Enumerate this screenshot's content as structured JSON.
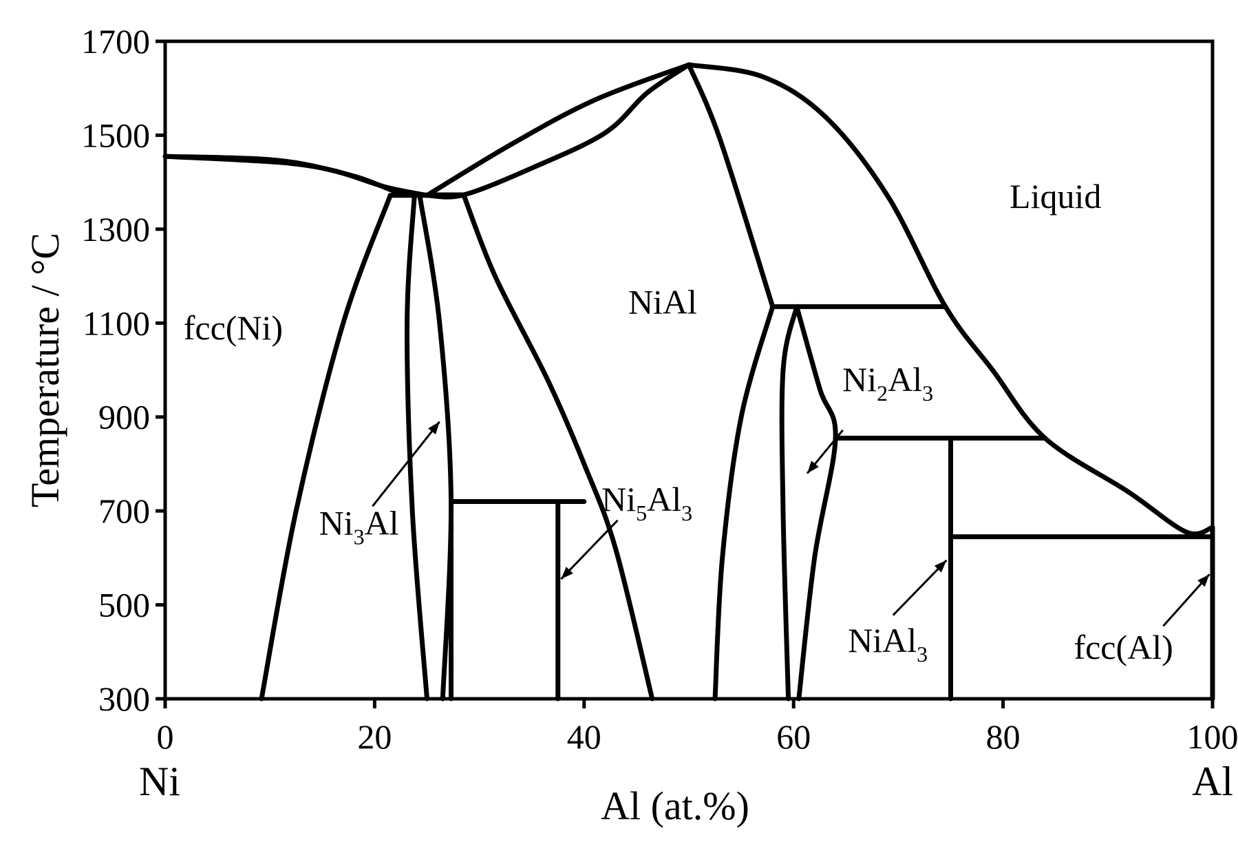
{
  "chart_data": {
    "type": "phase-diagram",
    "title": "",
    "xlabel": "Al (at.%)",
    "ylabel": "Temperature / °C",
    "xlim": [
      0,
      100
    ],
    "ylim": [
      300,
      1700
    ],
    "x_ticks": [
      "0",
      "20",
      "40",
      "60",
      "80",
      "100"
    ],
    "y_ticks": [
      "300",
      "500",
      "700",
      "900",
      "1100",
      "1300",
      "1500",
      "1700"
    ],
    "x_end_labels": {
      "left": "Ni",
      "right": "Al"
    },
    "grid": false,
    "region_labels": [
      {
        "id": "liquid",
        "parts": [
          {
            "t": "Liquid"
          }
        ],
        "at": [
          85,
          1345
        ]
      },
      {
        "id": "fcc-ni",
        "parts": [
          {
            "t": "fcc(Ni)"
          }
        ],
        "at": [
          6.5,
          1065
        ]
      },
      {
        "id": "nial",
        "parts": [
          {
            "t": "NiAl"
          }
        ],
        "at": [
          47.5,
          1120
        ]
      },
      {
        "id": "ni3al",
        "parts": [
          {
            "t": "Ni"
          },
          {
            "t": "3",
            "sub": true
          },
          {
            "t": "Al"
          }
        ],
        "at": [
          18.5,
          650
        ]
      },
      {
        "id": "ni5al3",
        "parts": [
          {
            "t": "Ni"
          },
          {
            "t": "5",
            "sub": true
          },
          {
            "t": "Al"
          },
          {
            "t": "3",
            "sub": true
          }
        ],
        "at": [
          46,
          700
        ]
      },
      {
        "id": "ni2al3",
        "parts": [
          {
            "t": "Ni"
          },
          {
            "t": "2",
            "sub": true
          },
          {
            "t": "Al"
          },
          {
            "t": "3",
            "sub": true
          }
        ],
        "at": [
          69,
          955
        ]
      },
      {
        "id": "nial3",
        "parts": [
          {
            "t": "NiAl"
          },
          {
            "t": "3",
            "sub": true
          }
        ],
        "at": [
          69,
          400
        ]
      },
      {
        "id": "fcc-al",
        "parts": [
          {
            "t": "fcc(Al)"
          }
        ],
        "at": [
          91.5,
          385
        ]
      }
    ],
    "arrows": [
      {
        "id": "ni3al",
        "from": [
          19.8,
          710
        ],
        "to": [
          26.2,
          890
        ]
      },
      {
        "id": "ni5al3",
        "from": [
          43.2,
          680
        ],
        "to": [
          37.8,
          555
        ]
      },
      {
        "id": "ni2al3",
        "from": [
          64.7,
          872
        ],
        "to": [
          61.3,
          780
        ]
      },
      {
        "id": "nial3",
        "from": [
          69.5,
          478
        ],
        "to": [
          74.6,
          595
        ]
      },
      {
        "id": "fcc-al",
        "from": [
          95.3,
          455
        ],
        "to": [
          99.7,
          565
        ]
      }
    ],
    "boundaries": [
      {
        "id": "ni-liquidus",
        "points": [
          [
            0,
            1455
          ],
          [
            10,
            1448
          ],
          [
            16,
            1425
          ],
          [
            21,
            1390
          ],
          [
            25,
            1372
          ]
        ]
      },
      {
        "id": "ni-solidus",
        "points": [
          [
            0,
            1455
          ],
          [
            12,
            1440
          ],
          [
            18,
            1413
          ],
          [
            22,
            1380
          ],
          [
            23.8,
            1372
          ]
        ]
      },
      {
        "id": "fcc-solvus",
        "points": [
          [
            21.5,
            1372
          ],
          [
            17,
            1100
          ],
          [
            12.5,
            700
          ],
          [
            9.2,
            300
          ]
        ]
      },
      {
        "id": "ni3al-left",
        "points": [
          [
            23.8,
            1372
          ],
          [
            23.1,
            1100
          ],
          [
            23.6,
            700
          ],
          [
            25,
            300
          ]
        ]
      },
      {
        "id": "ni3al-right",
        "points": [
          [
            24.3,
            1372
          ],
          [
            26.2,
            1100
          ],
          [
            27.3,
            720
          ],
          [
            26.5,
            300
          ]
        ]
      },
      {
        "id": "nial-liquidus-left",
        "points": [
          [
            25,
            1372
          ],
          [
            33,
            1480
          ],
          [
            41,
            1575
          ],
          [
            50,
            1650
          ]
        ]
      },
      {
        "id": "nial-solidus-left",
        "points": [
          [
            25,
            1372
          ],
          [
            28.5,
            1373
          ],
          [
            35,
            1430
          ],
          [
            42,
            1505
          ],
          [
            46,
            1590
          ],
          [
            50,
            1650
          ]
        ]
      },
      {
        "id": "nial-solvus-left",
        "points": [
          [
            28.5,
            1373
          ],
          [
            31.5,
            1200
          ],
          [
            36.5,
            980
          ],
          [
            40,
            800
          ],
          [
            43,
            620
          ],
          [
            46.5,
            300
          ]
        ]
      },
      {
        "id": "nial-solidus-right",
        "points": [
          [
            50,
            1650
          ],
          [
            53,
            1490
          ],
          [
            58,
            1135
          ]
        ]
      },
      {
        "id": "nial-solvus-right",
        "points": [
          [
            58,
            1135
          ],
          [
            55,
            900
          ],
          [
            53.2,
            600
          ],
          [
            52.5,
            300
          ]
        ]
      },
      {
        "id": "liquidus-right",
        "points": [
          [
            50,
            1650
          ],
          [
            57,
            1625
          ],
          [
            63,
            1540
          ],
          [
            69,
            1370
          ],
          [
            74.5,
            1135
          ],
          [
            79,
            1000
          ],
          [
            84,
            855
          ],
          [
            92,
            740
          ],
          [
            97.5,
            655
          ],
          [
            100,
            665
          ]
        ]
      },
      {
        "id": "ni2al3-left",
        "points": [
          [
            60.3,
            1135
          ],
          [
            59,
            1000
          ],
          [
            59,
            700
          ],
          [
            59.5,
            300
          ]
        ]
      },
      {
        "id": "ni2al3-right",
        "points": [
          [
            60.3,
            1135
          ],
          [
            62.5,
            960
          ],
          [
            64,
            855
          ],
          [
            62,
            600
          ],
          [
            60.5,
            300
          ]
        ]
      },
      {
        "id": "ni5al3-left",
        "points": [
          [
            27.3,
            720
          ],
          [
            27.3,
            300
          ]
        ]
      },
      {
        "id": "ni5al3-right",
        "points": [
          [
            37.5,
            720
          ],
          [
            37.5,
            300
          ]
        ]
      },
      {
        "id": "nial3",
        "points": [
          [
            75,
            855
          ],
          [
            75,
            300
          ]
        ]
      },
      {
        "id": "fcc-al",
        "points": [
          [
            100,
            665
          ],
          [
            100,
            300
          ]
        ]
      }
    ],
    "isotherms": [
      {
        "id": "peritectic-1372",
        "points": [
          [
            21.5,
            1372
          ],
          [
            25,
            1372
          ]
        ]
      },
      {
        "id": "peritectic-1373",
        "points": [
          [
            25,
            1373
          ],
          [
            28.5,
            1373
          ]
        ]
      },
      {
        "id": "ni5al3-720",
        "points": [
          [
            27.3,
            720
          ],
          [
            40,
            720
          ]
        ]
      },
      {
        "id": "peritectic-1135",
        "points": [
          [
            58,
            1135
          ],
          [
            74.5,
            1135
          ]
        ]
      },
      {
        "id": "peritectic-855",
        "points": [
          [
            64,
            855
          ],
          [
            84,
            855
          ]
        ]
      },
      {
        "id": "eutectic-645",
        "points": [
          [
            75,
            645
          ],
          [
            100,
            645
          ]
        ]
      }
    ]
  }
}
